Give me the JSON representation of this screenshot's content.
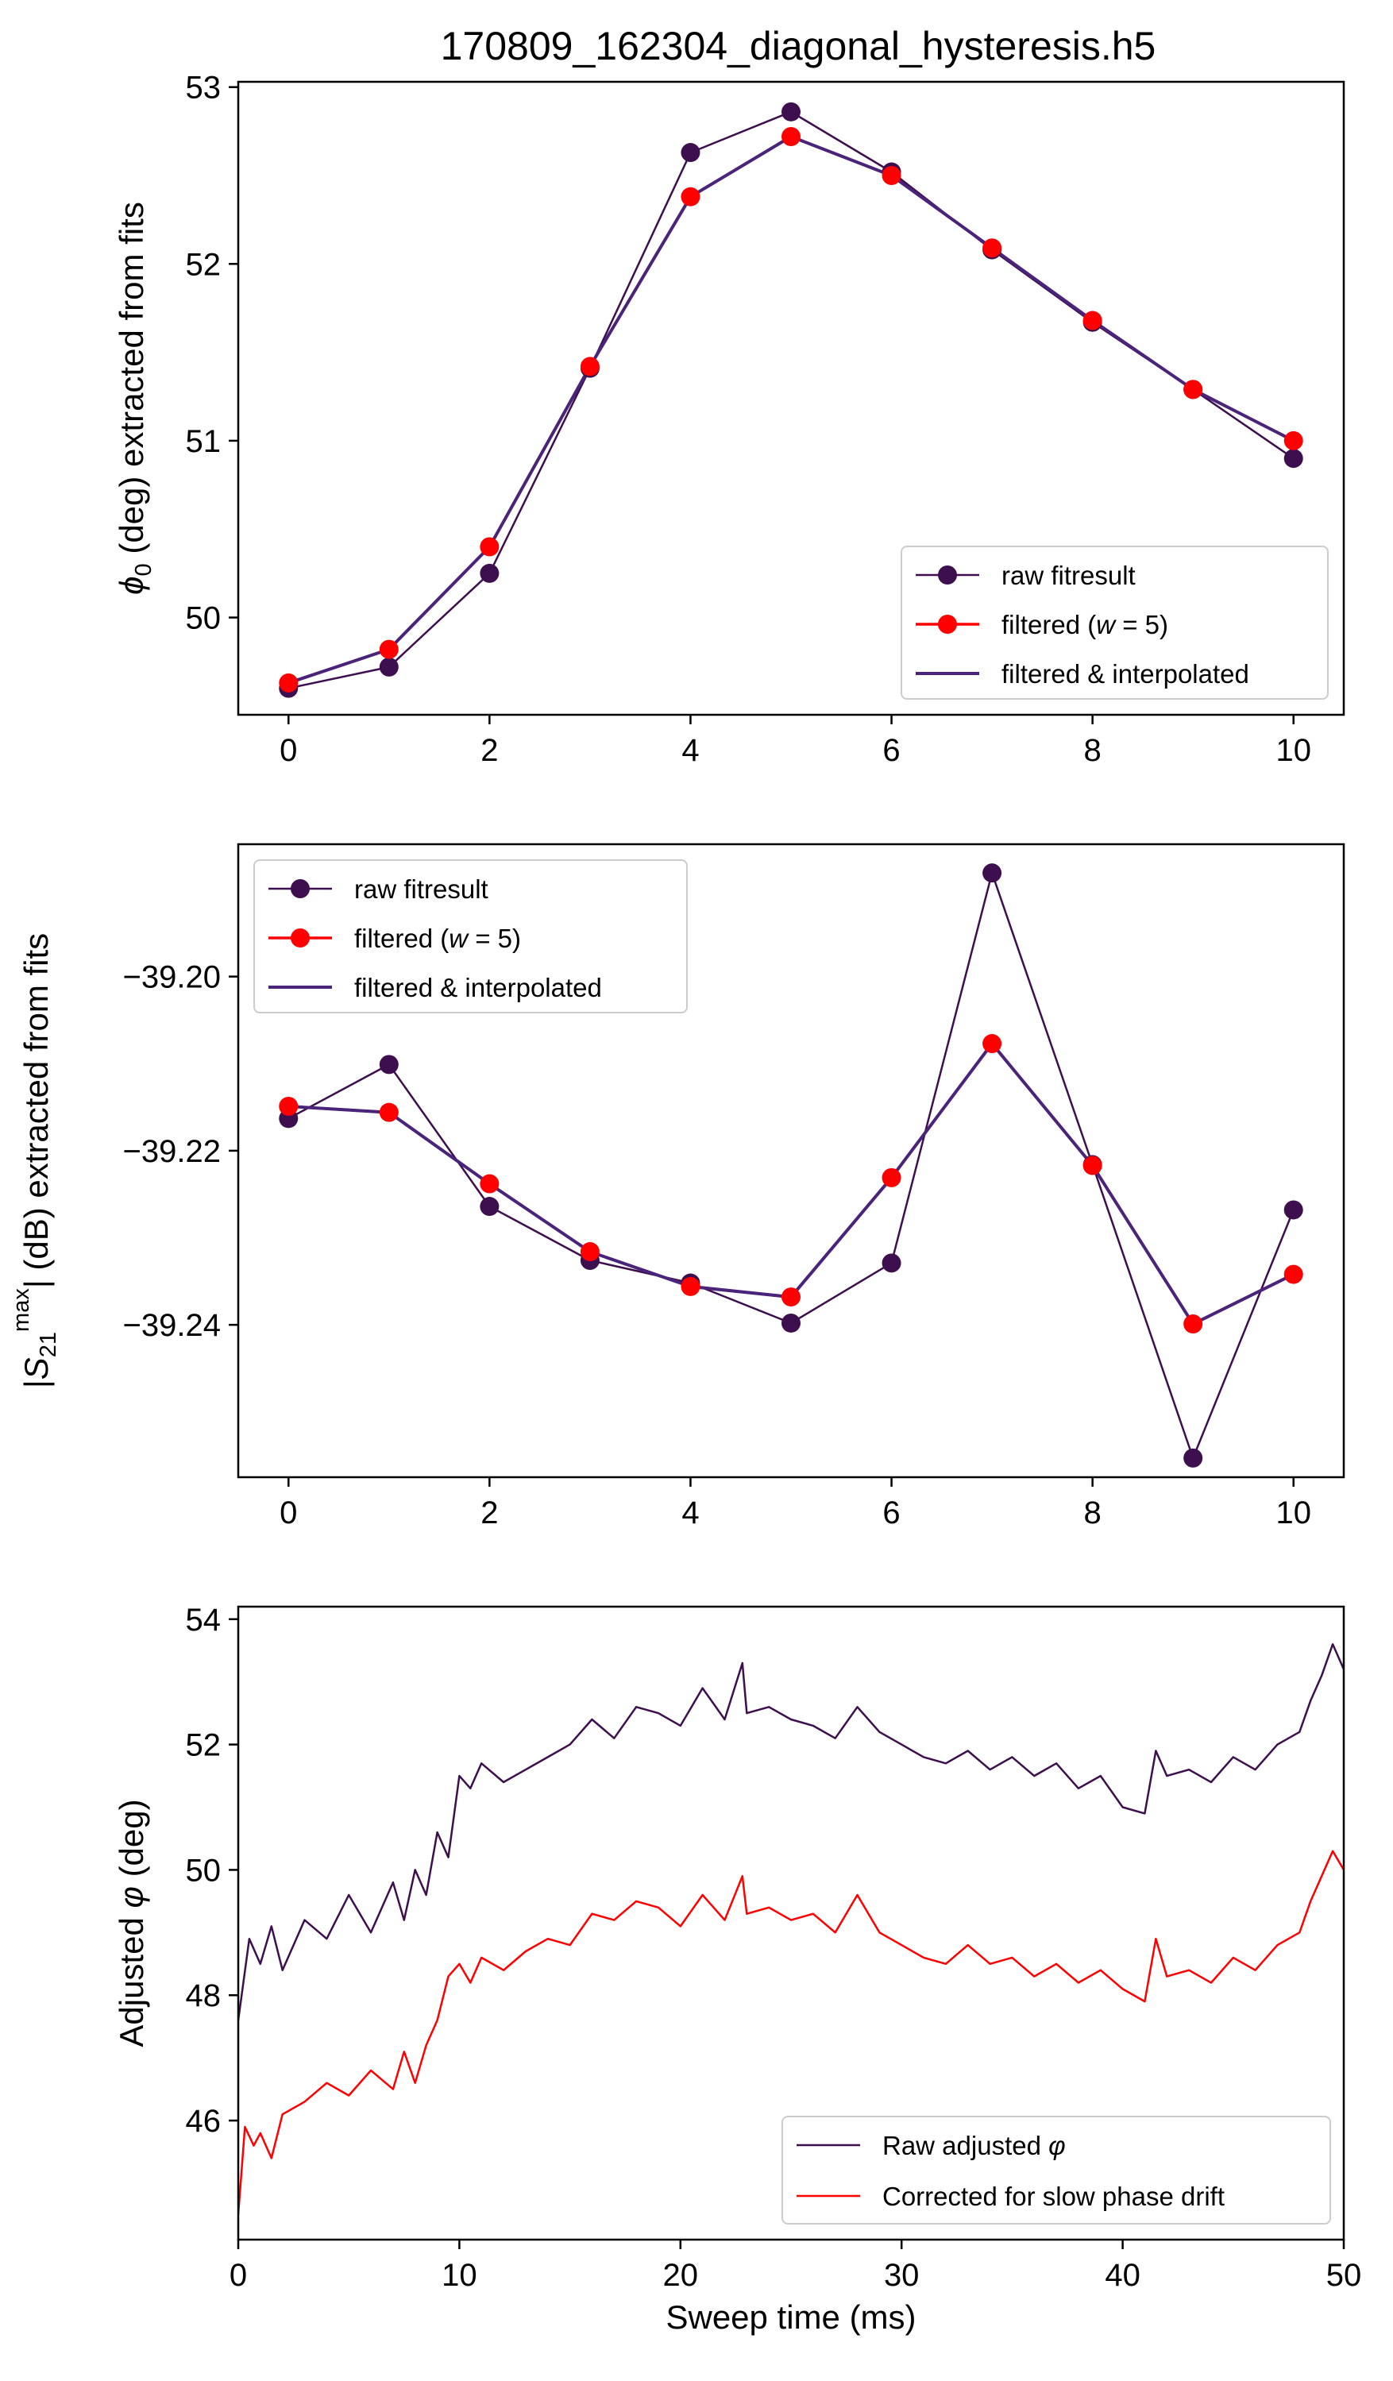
{
  "figure_title": "170809_162304_diagonal_hysteresis.h5",
  "chart_data": [
    {
      "type": "line",
      "title": "170809_162304_diagonal_hysteresis.h5",
      "ylabel": {
        "pre": "",
        "sym": "ϕ",
        "sub": "0",
        "sup": "",
        "post": " (deg) extracted from fits"
      },
      "xlabel": "",
      "xlim": [
        -0.5,
        10.5
      ],
      "ylim": [
        49.45,
        53.03
      ],
      "xticks": [
        0,
        2,
        4,
        6,
        8,
        10
      ],
      "xtick_labels": [
        "0",
        "2",
        "4",
        "6",
        "8",
        "10"
      ],
      "yticks": [
        50,
        51,
        52,
        53
      ],
      "ytick_labels": [
        "50",
        "51",
        "52",
        "53"
      ],
      "legend_position": "lower-right",
      "x": [
        0,
        1,
        2,
        3,
        4,
        5,
        6,
        7,
        8,
        9,
        10
      ],
      "series": [
        {
          "name": "raw fitresult",
          "color": "#3d0f4f",
          "marker": true,
          "line_width": 2.5,
          "values": [
            49.6,
            49.72,
            50.25,
            51.41,
            52.63,
            52.86,
            52.52,
            52.08,
            51.67,
            51.29,
            50.9
          ]
        },
        {
          "name": "filtered (w = 5)",
          "name_parts": {
            "pre": "filtered (",
            "var": "w",
            "post": " = 5)"
          },
          "color": "#ff0000",
          "marker": true,
          "line_width": 3.5,
          "values": [
            49.63,
            49.82,
            50.4,
            51.42,
            52.38,
            52.72,
            52.5,
            52.09,
            51.68,
            51.29,
            51.0
          ]
        },
        {
          "name": "filtered & interpolated",
          "color": "#4a237a",
          "marker": false,
          "line_width": 4,
          "values": [
            49.63,
            49.82,
            50.4,
            51.42,
            52.38,
            52.72,
            52.5,
            52.09,
            51.68,
            51.29,
            51.0
          ]
        }
      ]
    },
    {
      "type": "line",
      "ylabel": {
        "pre": "|",
        "sym": "S",
        "sub": "21",
        "sup": "max",
        "post": "| (dB) extracted from fits"
      },
      "xlabel": "",
      "xlim": [
        -0.5,
        10.5
      ],
      "ylim": [
        -39.2575,
        -39.1848
      ],
      "xticks": [
        0,
        2,
        4,
        6,
        8,
        10
      ],
      "xtick_labels": [
        "0",
        "2",
        "4",
        "6",
        "8",
        "10"
      ],
      "yticks": [
        -39.2,
        -39.22,
        -39.24
      ],
      "ytick_labels": [
        "−39.20",
        "−39.22",
        "−39.24"
      ],
      "legend_position": "upper-left",
      "x": [
        0,
        1,
        2,
        3,
        4,
        5,
        6,
        7,
        8,
        9,
        10
      ],
      "series": [
        {
          "name": "raw fitresult",
          "color": "#3d0f4f",
          "marker": true,
          "line_width": 2.5,
          "values": [
            -39.2163,
            -39.2101,
            -39.2264,
            -39.2326,
            -39.2352,
            -39.2398,
            -39.2329,
            -39.1881,
            -39.2216,
            -39.2553,
            -39.2268
          ]
        },
        {
          "name": "filtered (w = 5)",
          "name_parts": {
            "pre": "filtered (",
            "var": "w",
            "post": " = 5)"
          },
          "color": "#ff0000",
          "marker": true,
          "line_width": 3.5,
          "values": [
            -39.2149,
            -39.2156,
            -39.2238,
            -39.2316,
            -39.2356,
            -39.2368,
            -39.2231,
            -39.2077,
            -39.2217,
            -39.2399,
            -39.2342
          ]
        },
        {
          "name": "filtered & interpolated",
          "color": "#4a237a",
          "marker": false,
          "line_width": 4,
          "values": [
            -39.2149,
            -39.2156,
            -39.2238,
            -39.2316,
            -39.2356,
            -39.2368,
            -39.2231,
            -39.2077,
            -39.2217,
            -39.2399,
            -39.2342
          ]
        }
      ]
    },
    {
      "type": "line",
      "ylabel": {
        "pre": "Adjusted ",
        "sym": "φ",
        "sub": "",
        "sup": "",
        "post": " (deg)"
      },
      "xlabel": "Sweep time (ms)",
      "xlim": [
        0,
        50
      ],
      "ylim": [
        44.1,
        54.2
      ],
      "xticks": [
        0,
        10,
        20,
        30,
        40,
        50
      ],
      "xtick_labels": [
        "0",
        "10",
        "20",
        "30",
        "40",
        "50"
      ],
      "yticks": [
        46,
        48,
        50,
        52,
        54
      ],
      "ytick_labels": [
        "46",
        "48",
        "50",
        "52",
        "54"
      ],
      "legend_position": "lower-right",
      "series": [
        {
          "name": "Raw adjusted φ",
          "name_parts": {
            "pre": "Raw adjusted ",
            "var": "φ",
            "post": ""
          },
          "color": "#3d0f4f",
          "line_width": 2.5,
          "x": [
            0,
            0.5,
            1,
            1.5,
            2,
            3,
            4,
            5,
            6,
            7,
            7.5,
            8,
            8.5,
            9,
            9.5,
            10,
            10.5,
            11,
            12,
            13,
            14,
            15,
            16,
            17,
            18,
            19,
            20,
            21,
            22,
            22.8,
            23,
            24,
            25,
            26,
            27,
            28,
            29,
            30,
            31,
            32,
            33,
            34,
            35,
            36,
            37,
            38,
            39,
            40,
            41,
            41.5,
            42,
            43,
            44,
            45,
            46,
            47,
            48,
            48.5,
            49,
            49.5,
            50
          ],
          "values": [
            47.6,
            48.9,
            48.5,
            49.1,
            48.4,
            49.2,
            48.9,
            49.6,
            49.0,
            49.8,
            49.2,
            50.0,
            49.6,
            50.6,
            50.2,
            51.5,
            51.3,
            51.7,
            51.4,
            51.6,
            51.8,
            52.0,
            52.4,
            52.1,
            52.6,
            52.5,
            52.3,
            52.9,
            52.4,
            53.3,
            52.5,
            52.6,
            52.4,
            52.3,
            52.1,
            52.6,
            52.2,
            52.0,
            51.8,
            51.7,
            51.9,
            51.6,
            51.8,
            51.5,
            51.7,
            51.3,
            51.5,
            51.0,
            50.9,
            51.9,
            51.5,
            51.6,
            51.4,
            51.8,
            51.6,
            52.0,
            52.2,
            52.7,
            53.1,
            53.6,
            53.2
          ]
        },
        {
          "name": "Corrected for slow phase drift",
          "color": "#ff0000",
          "line_width": 2.5,
          "x": [
            0,
            0.3,
            0.7,
            1,
            1.5,
            2,
            3,
            4,
            5,
            6,
            7,
            7.5,
            8,
            8.5,
            9,
            9.5,
            10,
            10.5,
            11,
            12,
            13,
            14,
            15,
            16,
            17,
            18,
            19,
            20,
            21,
            22,
            22.8,
            23,
            24,
            25,
            26,
            27,
            28,
            29,
            30,
            31,
            32,
            33,
            34,
            35,
            36,
            37,
            38,
            39,
            40,
            41,
            41.5,
            42,
            43,
            44,
            45,
            46,
            47,
            48,
            48.5,
            49,
            49.5,
            50
          ],
          "values": [
            44.5,
            45.9,
            45.6,
            45.8,
            45.4,
            46.1,
            46.3,
            46.6,
            46.4,
            46.8,
            46.5,
            47.1,
            46.6,
            47.2,
            47.6,
            48.3,
            48.5,
            48.2,
            48.6,
            48.4,
            48.7,
            48.9,
            48.8,
            49.3,
            49.2,
            49.5,
            49.4,
            49.1,
            49.6,
            49.2,
            49.9,
            49.3,
            49.4,
            49.2,
            49.3,
            49.0,
            49.6,
            49.0,
            48.8,
            48.6,
            48.5,
            48.8,
            48.5,
            48.6,
            48.3,
            48.5,
            48.2,
            48.4,
            48.1,
            47.9,
            48.9,
            48.3,
            48.4,
            48.2,
            48.6,
            48.4,
            48.8,
            49.0,
            49.5,
            49.9,
            50.3,
            50.0
          ]
        }
      ]
    }
  ]
}
